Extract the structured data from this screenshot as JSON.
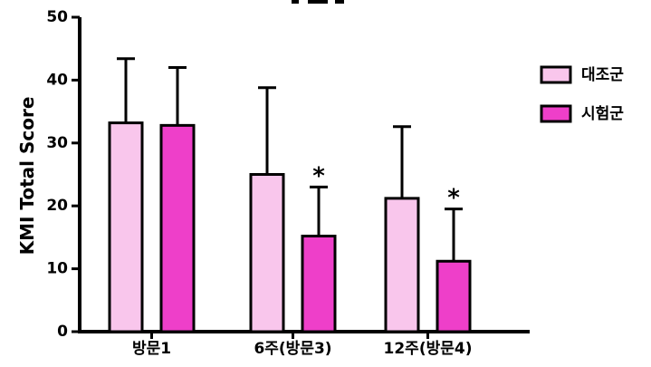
{
  "chart_data": {
    "type": "bar",
    "title": "",
    "xlabel": "",
    "ylabel": "KMI Total Score",
    "ylim": [
      0,
      50
    ],
    "yticks": [
      0,
      10,
      20,
      30,
      40,
      50
    ],
    "categories": [
      "방문1",
      "6주(방문3)",
      "12주(방문4)"
    ],
    "series": [
      {
        "name": "대조군",
        "color": "#f9c6ec",
        "values": [
          33.2,
          25.0,
          21.2
        ],
        "error_upper": [
          10.2,
          13.8,
          11.4
        ]
      },
      {
        "name": "시험군",
        "color": "#ee3fc9",
        "values": [
          32.8,
          15.2,
          11.2
        ],
        "error_upper": [
          9.2,
          7.8,
          8.3
        ]
      }
    ],
    "annotations": [
      {
        "category_index": 1,
        "series_index": 1,
        "text": "*"
      },
      {
        "category_index": 2,
        "series_index": 1,
        "text": "*"
      }
    ],
    "legend": "right",
    "grid": false
  }
}
